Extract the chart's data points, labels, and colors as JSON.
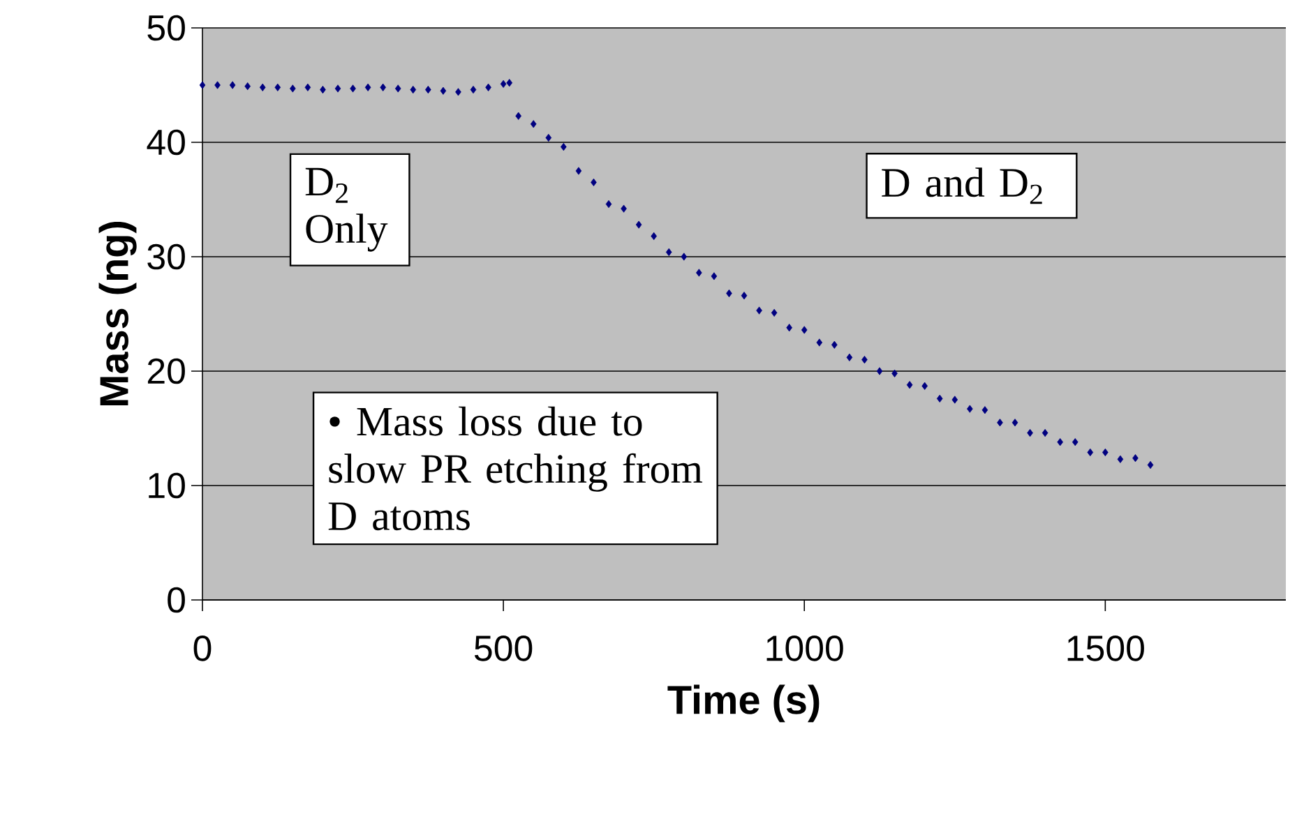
{
  "chart_data": {
    "type": "scatter",
    "xlabel": "Time (s)",
    "ylabel": "Mass (ng)",
    "x": [
      0,
      25,
      50,
      75,
      100,
      125,
      150,
      175,
      200,
      225,
      250,
      275,
      300,
      325,
      350,
      375,
      400,
      425,
      450,
      475,
      500,
      510,
      525,
      550,
      575,
      600,
      625,
      650,
      675,
      700,
      725,
      750,
      775,
      800,
      825,
      850,
      875,
      900,
      925,
      950,
      975,
      1000,
      1025,
      1050,
      1075,
      1100,
      1125,
      1150,
      1175,
      1200,
      1225,
      1250,
      1275,
      1300,
      1325,
      1350,
      1375,
      1400,
      1425,
      1450,
      1475,
      1500,
      1525,
      1550,
      1575
    ],
    "values": [
      45.0,
      45.0,
      45.0,
      44.9,
      44.8,
      44.8,
      44.7,
      44.8,
      44.6,
      44.7,
      44.7,
      44.8,
      44.8,
      44.7,
      44.6,
      44.6,
      44.5,
      44.4,
      44.6,
      44.8,
      45.1,
      45.2,
      42.3,
      41.6,
      40.4,
      39.6,
      37.5,
      36.5,
      34.6,
      34.2,
      32.8,
      31.8,
      30.4,
      30.0,
      28.6,
      28.3,
      26.8,
      26.6,
      25.3,
      25.1,
      23.8,
      23.6,
      22.5,
      22.3,
      21.2,
      21.0,
      20.0,
      19.8,
      18.8,
      18.7,
      17.6,
      17.5,
      16.7,
      16.6,
      15.5,
      15.5,
      14.6,
      14.6,
      13.8,
      13.8,
      12.9,
      12.9,
      12.3,
      12.4,
      11.8
    ],
    "color": "#000080",
    "marker": "diamond",
    "grid": "y",
    "xlim": [
      0,
      1800
    ],
    "xticks": [
      0,
      500,
      1000,
      1500
    ],
    "ylim": [
      0,
      50
    ],
    "yticks": [
      0,
      10,
      20,
      30,
      40,
      50
    ],
    "annotations": [
      "D$_{2}$ Only",
      "D and D$_{2}$",
      "• Mass loss due to slow PR etching from D atoms"
    ]
  }
}
